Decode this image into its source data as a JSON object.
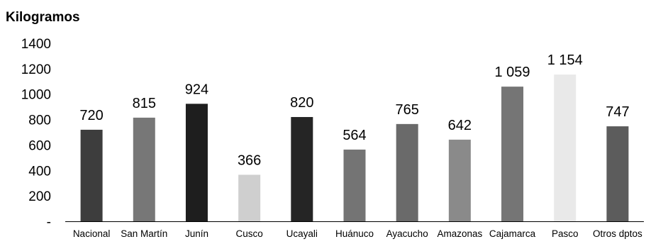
{
  "chart_data": {
    "type": "bar",
    "title": "",
    "ylabel": "Kilogramos",
    "xlabel": "",
    "ylim": [
      0,
      1400
    ],
    "yticks": [
      0,
      200,
      400,
      600,
      800,
      1000,
      1200,
      1400
    ],
    "ytick_labels": [
      "-",
      "200",
      "400",
      "600",
      "800",
      "1000",
      "1200",
      "1400"
    ],
    "grid": false,
    "categories": [
      "Nacional",
      "San Martín",
      "Junín",
      "Cusco",
      "Ucayali",
      "Huánuco",
      "Ayacucho",
      "Amazonas",
      "Cajamarca",
      "Pasco",
      "Otros dptos"
    ],
    "values": [
      720,
      815,
      924,
      366,
      820,
      564,
      765,
      642,
      1059,
      1154,
      747
    ],
    "value_labels": [
      "720",
      "815",
      "924",
      "366",
      "820",
      "564",
      "765",
      "642",
      "1 059",
      "1 154",
      "747"
    ],
    "colors": [
      "#3d3d3d",
      "#777777",
      "#1e1e1e",
      "#cfcfcf",
      "#252525",
      "#747474",
      "#6a6a6a",
      "#8a8a8a",
      "#757575",
      "#e9e9e9",
      "#5c5c5c"
    ]
  }
}
